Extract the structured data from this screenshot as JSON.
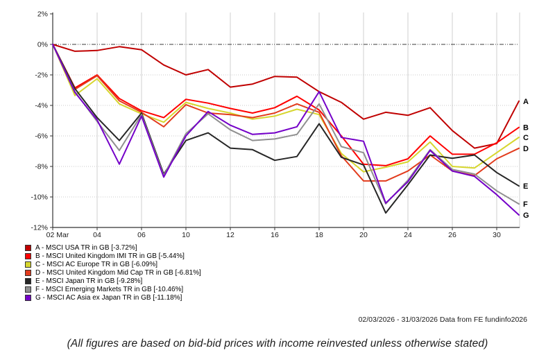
{
  "chart_data": {
    "type": "line",
    "title": "",
    "xlabel": "",
    "ylabel": "",
    "ylim": [
      -12,
      2
    ],
    "grid": true,
    "legend_position": "bottom-left",
    "x": [
      "02 Mar",
      "03",
      "04",
      "05",
      "06",
      "09",
      "10",
      "11",
      "12",
      "13",
      "16",
      "17",
      "18",
      "19",
      "20",
      "23",
      "24",
      "25",
      "26",
      "27",
      "30",
      "31"
    ],
    "x_axis_ticks": [
      {
        "label": "02 Mar",
        "index": 0
      },
      {
        "label": "04",
        "index": 2
      },
      {
        "label": "06",
        "index": 4
      },
      {
        "label": "10",
        "index": 6
      },
      {
        "label": "12",
        "index": 8
      },
      {
        "label": "16",
        "index": 10
      },
      {
        "label": "18",
        "index": 12
      },
      {
        "label": "20",
        "index": 14
      },
      {
        "label": "24",
        "index": 16
      },
      {
        "label": "26",
        "index": 18
      },
      {
        "label": "30",
        "index": 20
      }
    ],
    "y_axis_ticks": [
      {
        "label": "2%",
        "value": 2
      },
      {
        "label": "0%",
        "value": 0
      },
      {
        "label": "-2%",
        "value": -2
      },
      {
        "label": "-4%",
        "value": -4
      },
      {
        "label": "-6%",
        "value": -6
      },
      {
        "label": "-8%",
        "value": -8
      },
      {
        "label": "-10%",
        "value": -10
      },
      {
        "label": "-12%",
        "value": -12
      }
    ],
    "series": [
      {
        "id": "A",
        "name": "MSCI USA TR in GB",
        "final": "-3.72%",
        "legend_label": "A - MSCI USA TR in GB [-3.72%]",
        "color": "#c00000",
        "values": [
          0,
          -0.45,
          -0.4,
          -0.15,
          -0.35,
          -1.35,
          -2.0,
          -1.65,
          -2.8,
          -2.6,
          -2.1,
          -2.15,
          -3.1,
          -3.8,
          -4.9,
          -4.45,
          -4.65,
          -4.15,
          -5.65,
          -6.8,
          -6.5,
          -3.72
        ]
      },
      {
        "id": "B",
        "name": "MSCI United Kingdom IMI TR in GB",
        "final": "-5.44%",
        "legend_label": "B - MSCI United Kingdom IMI TR in GB [-5.44%]",
        "color": "#ff0000",
        "values": [
          0,
          -2.85,
          -2.0,
          -3.55,
          -4.35,
          -4.8,
          -3.6,
          -3.85,
          -4.2,
          -4.5,
          -4.15,
          -3.4,
          -4.3,
          -6.0,
          -7.85,
          -7.95,
          -7.5,
          -6.0,
          -7.2,
          -7.2,
          -6.45,
          -5.44
        ]
      },
      {
        "id": "C",
        "name": "MSCI AC Europe TR in GB",
        "final": "-6.09%",
        "legend_label": "C - MSCI AC Europe TR in GB [-6.09%]",
        "color": "#d6d62e",
        "values": [
          0,
          -3.35,
          -2.25,
          -3.9,
          -4.55,
          -5.1,
          -3.8,
          -4.2,
          -4.5,
          -4.9,
          -4.7,
          -4.25,
          -4.6,
          -7.15,
          -8.35,
          -8.05,
          -7.7,
          -6.4,
          -8.0,
          -8.1,
          -7.1,
          -6.09
        ]
      },
      {
        "id": "D",
        "name": "MSCI United Kingdom Mid Cap TR in GB",
        "final": "-6.81%",
        "legend_label": "D - MSCI United Kingdom Mid Cap TR in GB [-6.81%]",
        "color": "#e23b1c",
        "values": [
          0,
          -2.95,
          -2.05,
          -3.7,
          -4.45,
          -5.4,
          -3.95,
          -4.5,
          -4.6,
          -4.8,
          -4.5,
          -3.9,
          -4.45,
          -7.3,
          -8.95,
          -8.95,
          -8.3,
          -7.25,
          -8.3,
          -8.6,
          -7.5,
          -6.81
        ]
      },
      {
        "id": "E",
        "name": "MSCI Japan TR in GB",
        "final": "-9.28%",
        "legend_label": "E - MSCI Japan TR in GB [-9.28%]",
        "color": "#262626",
        "values": [
          0,
          -2.9,
          -4.8,
          -6.3,
          -4.5,
          -8.5,
          -6.3,
          -5.8,
          -6.8,
          -6.9,
          -7.6,
          -7.35,
          -5.2,
          -7.4,
          -7.9,
          -11.05,
          -9.2,
          -7.25,
          -7.47,
          -7.25,
          -8.4,
          -9.28
        ]
      },
      {
        "id": "F",
        "name": "MSCI Emerging Markets TR in GB",
        "final": "-10.46%",
        "legend_label": "F - MSCI Emerging Markets TR in GB [-10.46%]",
        "color": "#8f8f8f",
        "values": [
          0,
          -3.1,
          -5.05,
          -6.95,
          -4.6,
          -8.6,
          -5.85,
          -4.55,
          -5.6,
          -6.3,
          -6.2,
          -5.9,
          -3.9,
          -6.7,
          -7.1,
          -10.45,
          -8.9,
          -6.9,
          -8.2,
          -8.5,
          -9.6,
          -10.46
        ]
      },
      {
        "id": "G",
        "name": "MSCI AC Asia ex Japan TR in GB",
        "final": "-11.18%",
        "legend_label": "G - MSCI AC Asia ex Japan TR in GB [-11.18%]",
        "color": "#7400c8",
        "values": [
          0,
          -3.15,
          -4.95,
          -7.85,
          -4.7,
          -8.7,
          -6.0,
          -4.4,
          -5.3,
          -5.9,
          -5.8,
          -5.4,
          -3.1,
          -6.1,
          -6.35,
          -10.4,
          -9.0,
          -6.95,
          -8.3,
          -8.65,
          -9.85,
          -11.18
        ]
      }
    ]
  },
  "footer": {
    "data_range": "02/03/2026 - 31/03/2026 Data from FE fundinfo2026"
  },
  "disclaimer": "(All figures are based on bid-bid prices with income reinvested unless otherwise stated)"
}
